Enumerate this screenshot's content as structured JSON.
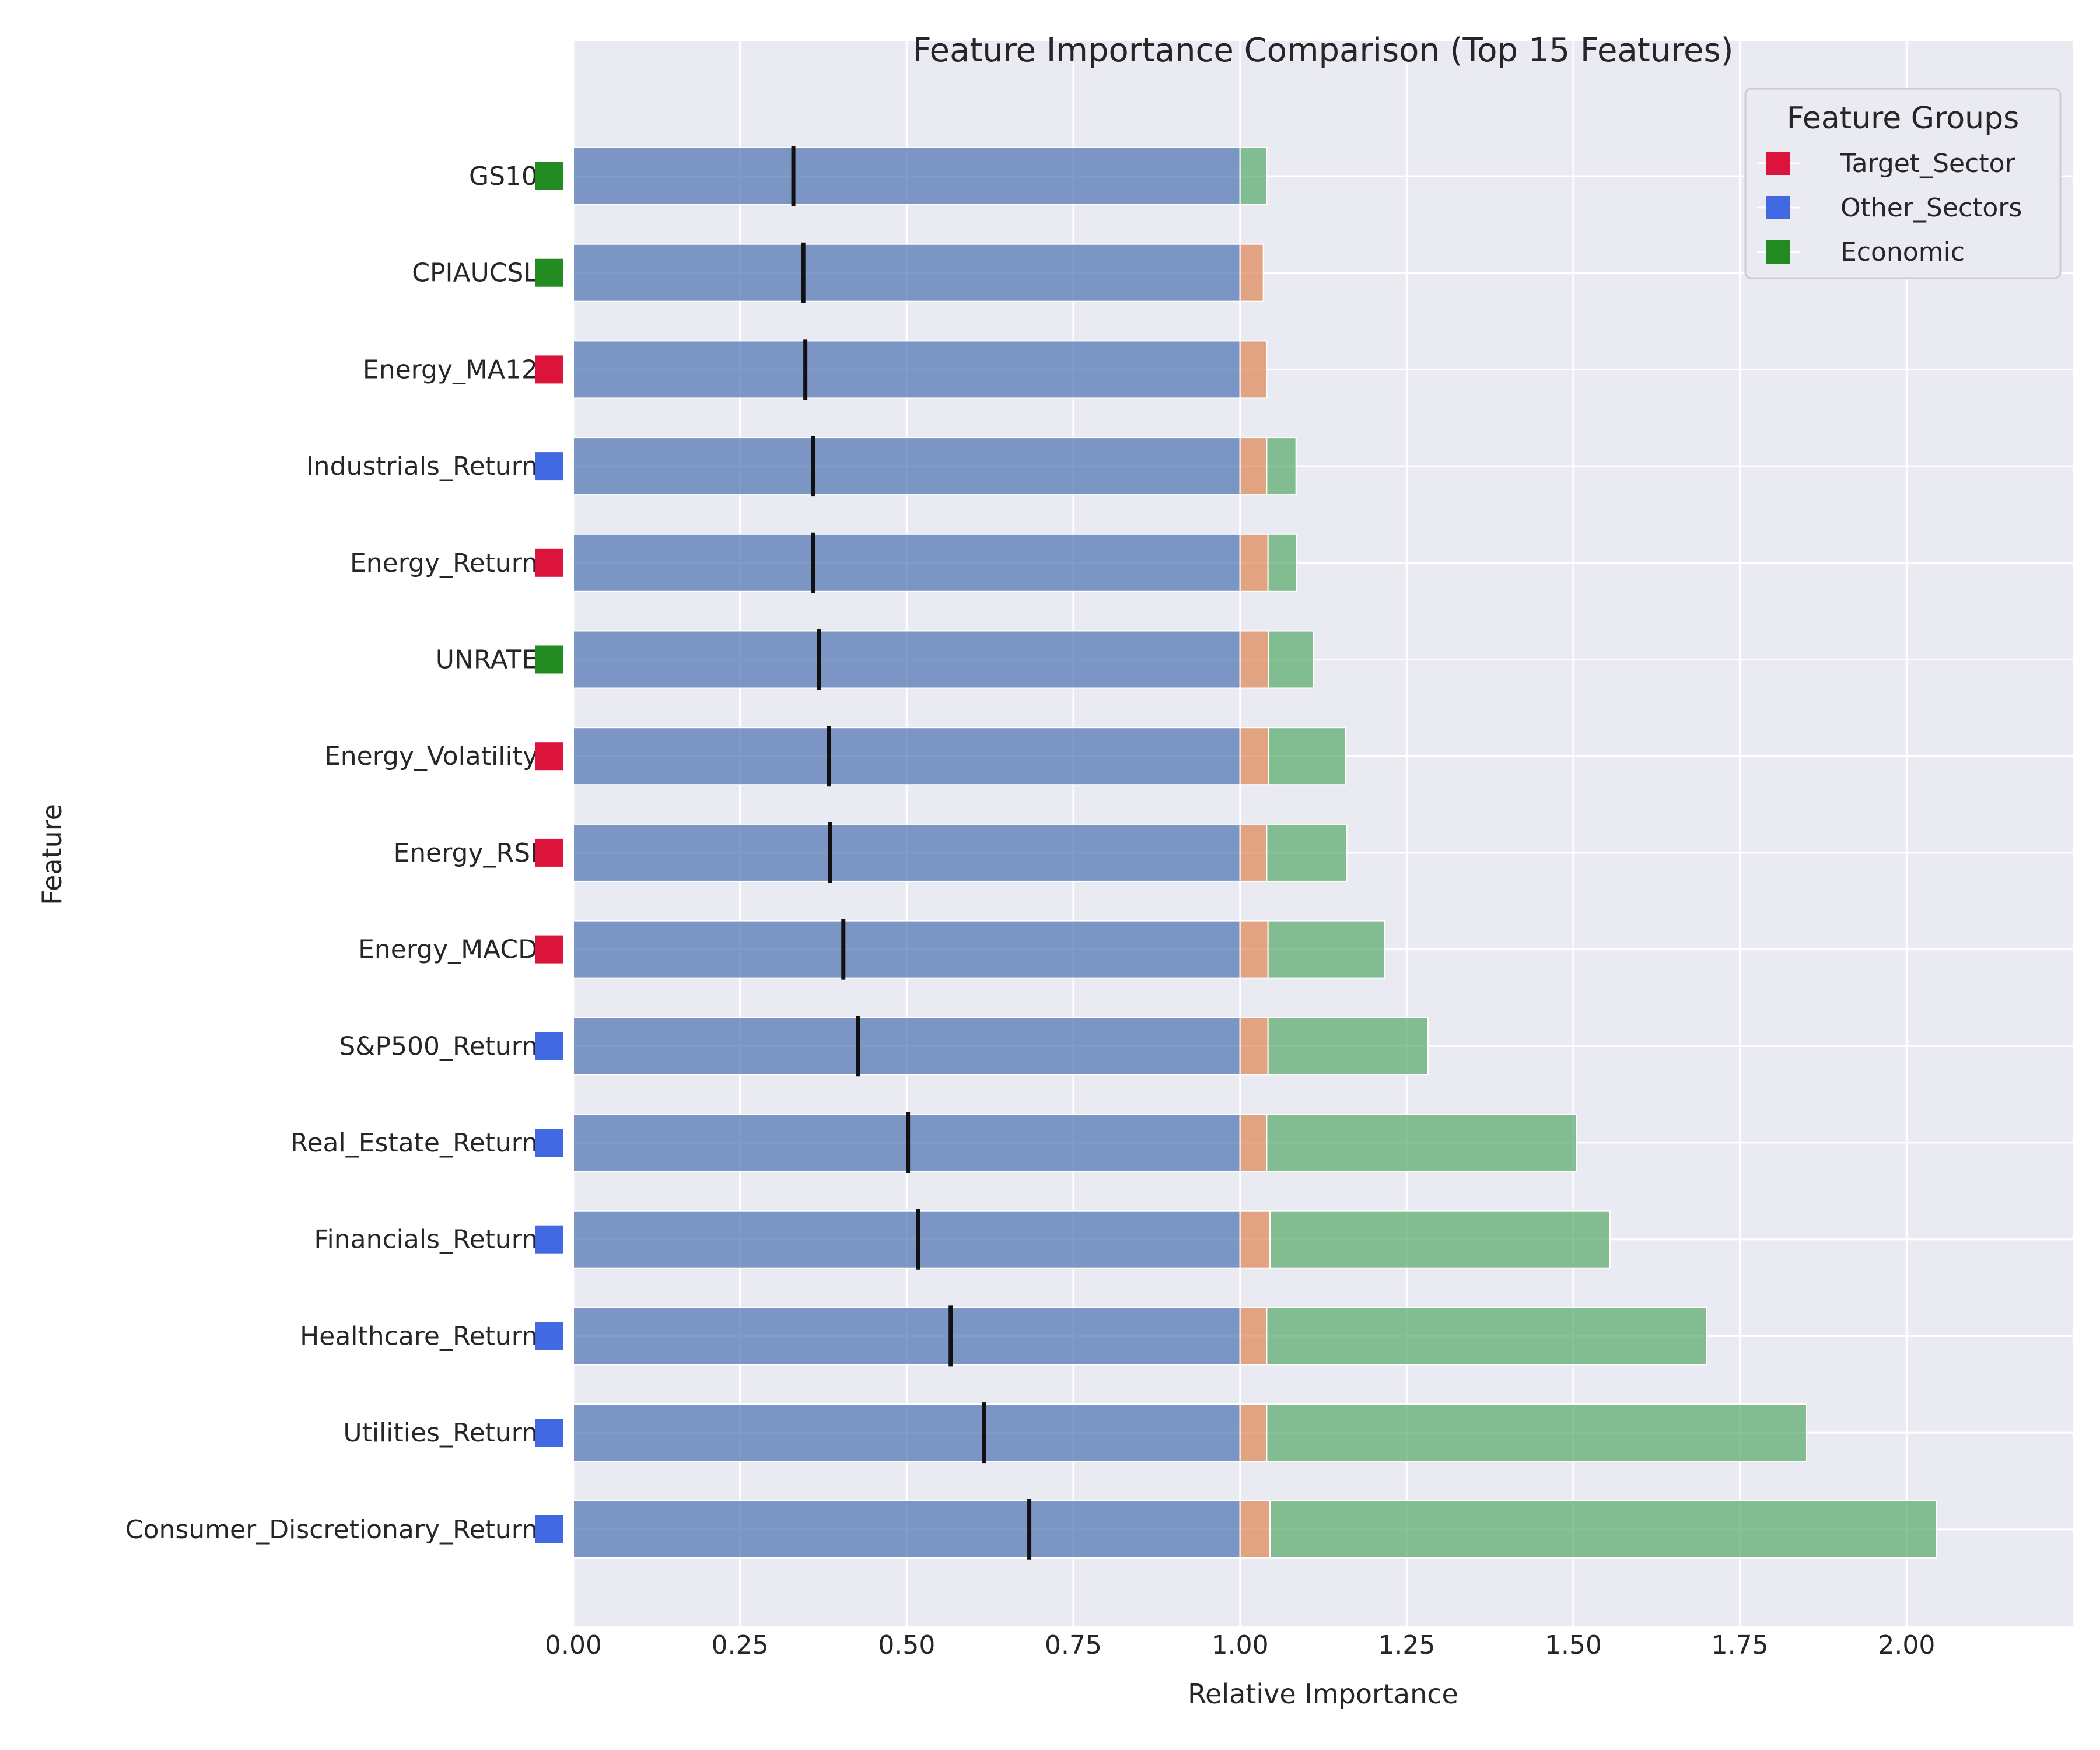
{
  "chart_data": {
    "type": "bar",
    "orientation": "horizontal",
    "stacked": true,
    "title": "Feature Importance Comparison (Top 15 Features)",
    "xlabel": "Relative Importance",
    "ylabel": "Feature",
    "xlim": [
      0,
      2.25
    ],
    "xticks": [
      "0.00",
      "0.25",
      "0.50",
      "0.75",
      "1.00",
      "1.25",
      "1.50",
      "1.75",
      "2.00"
    ],
    "grid": true,
    "legend": {
      "title": "Feature Groups",
      "placement": "top-right",
      "entries": [
        {
          "name": "Target_Sector",
          "color": "#DC143C"
        },
        {
          "name": "Other_Sectors",
          "color": "#4169E1"
        },
        {
          "name": "Economic",
          "color": "#228B22"
        }
      ]
    },
    "series_colors": [
      "#4C72B0",
      "#DD8452",
      "#55A868"
    ],
    "categories": [
      "GS10",
      "CPIAUCSL",
      "Energy_MA12",
      "Industrials_Return",
      "Energy_Return",
      "UNRATE",
      "Energy_Volatility",
      "Energy_RSI",
      "Energy_MACD",
      "S&P500_Return",
      "Real_Estate_Return",
      "Financials_Return",
      "Healthcare_Return",
      "Utilities_Return",
      "Consumer_Discretionary_Return"
    ],
    "groups": [
      "Economic",
      "Economic",
      "Target_Sector",
      "Other_Sectors",
      "Target_Sector",
      "Economic",
      "Target_Sector",
      "Target_Sector",
      "Target_Sector",
      "Other_Sectors",
      "Other_Sectors",
      "Other_Sectors",
      "Other_Sectors",
      "Other_Sectors",
      "Other_Sectors"
    ],
    "series": [
      {
        "values": [
          1.0,
          1.0,
          1.0,
          1.0,
          1.0,
          1.0,
          1.0,
          1.0,
          1.0,
          1.0,
          1.0,
          1.0,
          1.0,
          1.0,
          1.0
        ]
      },
      {
        "values": [
          0.0,
          0.035,
          0.04,
          0.04,
          0.042,
          0.043,
          0.043,
          0.04,
          0.042,
          0.042,
          0.04,
          0.045,
          0.04,
          0.04,
          0.045
        ]
      },
      {
        "values": [
          0.04,
          0.0,
          0.0,
          0.044,
          0.043,
          0.067,
          0.115,
          0.12,
          0.175,
          0.24,
          0.465,
          0.51,
          0.66,
          0.81,
          1.0
        ]
      }
    ],
    "markers": [
      0.33,
      0.345,
      0.348,
      0.36,
      0.36,
      0.368,
      0.383,
      0.385,
      0.405,
      0.427,
      0.502,
      0.517,
      0.566,
      0.616,
      0.684
    ]
  }
}
